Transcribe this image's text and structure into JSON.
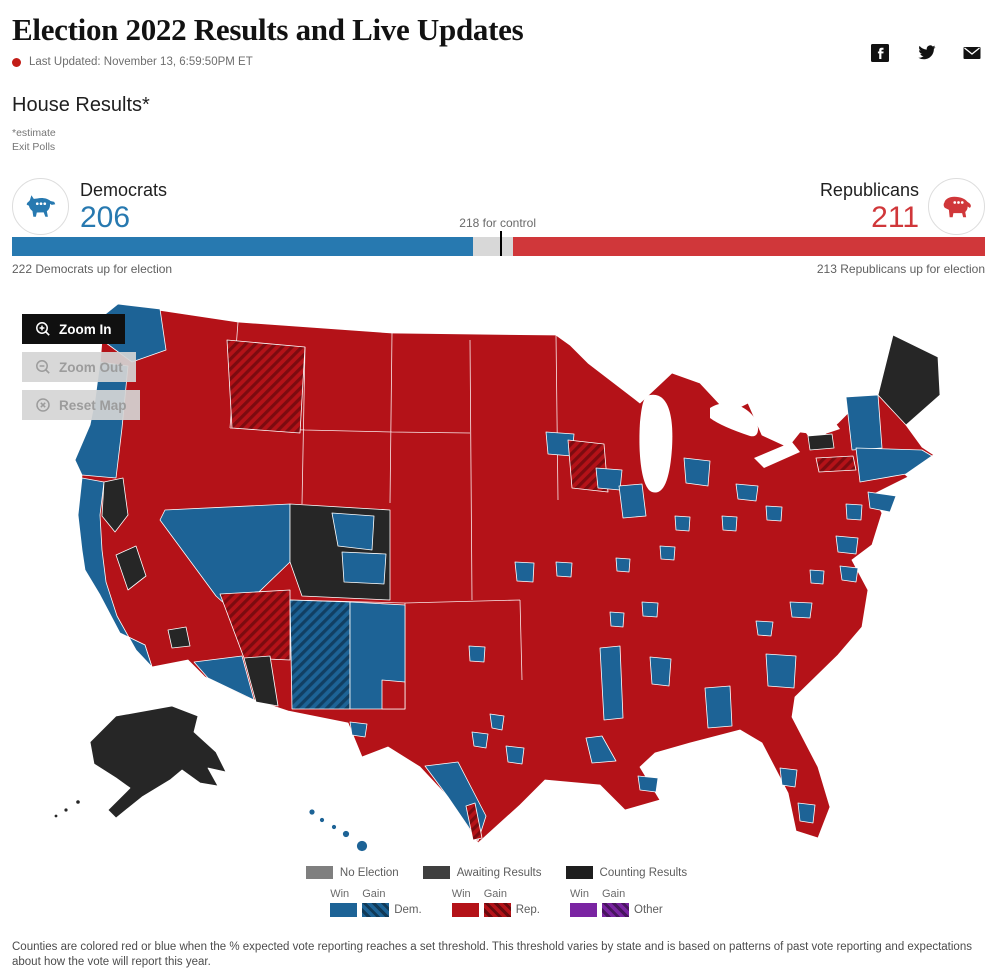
{
  "header": {
    "title": "Election 2022 Results and Live Updates",
    "last_updated": "Last Updated: November 13, 6:59:50PM ET"
  },
  "share": {
    "facebook": "facebook",
    "twitter": "twitter",
    "email": "email"
  },
  "section": {
    "title": "House Results*",
    "estimate_note": "*estimate",
    "exit_polls_link": "Exit Polls"
  },
  "balance_of_power": {
    "total_seats": 435,
    "seats_for_control": 218,
    "control_label": "218 for control",
    "democrats": {
      "label": "Democrats",
      "seats": "206",
      "up_for_election": "222 Democrats up for election",
      "color": "#2779b0"
    },
    "republicans": {
      "label": "Republicans",
      "seats": "211",
      "up_for_election": "213 Republicans up for election",
      "color": "#d0373a"
    },
    "undecided_color": "#d8d8d8"
  },
  "map": {
    "controls": [
      {
        "label": "Zoom In",
        "enabled": true
      },
      {
        "label": "Zoom Out",
        "enabled": false
      },
      {
        "label": "Reset Map",
        "enabled": false
      }
    ],
    "colors": {
      "dem_win": "#1d6396",
      "rep_win": "#b41218",
      "other_win": "#7a24a2",
      "no_election": "#7f7f7f",
      "awaiting_results": "#3f3f3f",
      "counting_results": "#1e1e1e"
    }
  },
  "legend": {
    "win": "Win",
    "gain": "Gain",
    "status": [
      {
        "label": "No Election",
        "color": "#7f7f7f"
      },
      {
        "label": "Awaiting Results",
        "color": "#3f3f3f"
      },
      {
        "label": "Counting Results",
        "color": "#1e1e1e"
      }
    ],
    "parties": [
      {
        "label": "Dem.",
        "color": "#1d6396"
      },
      {
        "label": "Rep.",
        "color": "#b41218"
      },
      {
        "label": "Other",
        "color": "#7a24a2"
      }
    ]
  },
  "footer": {
    "note": "Counties are colored red or blue when the % expected vote reporting reaches a set threshold. This threshold varies by state and is based on patterns of past vote reporting and expectations about how the vote will report this year."
  }
}
